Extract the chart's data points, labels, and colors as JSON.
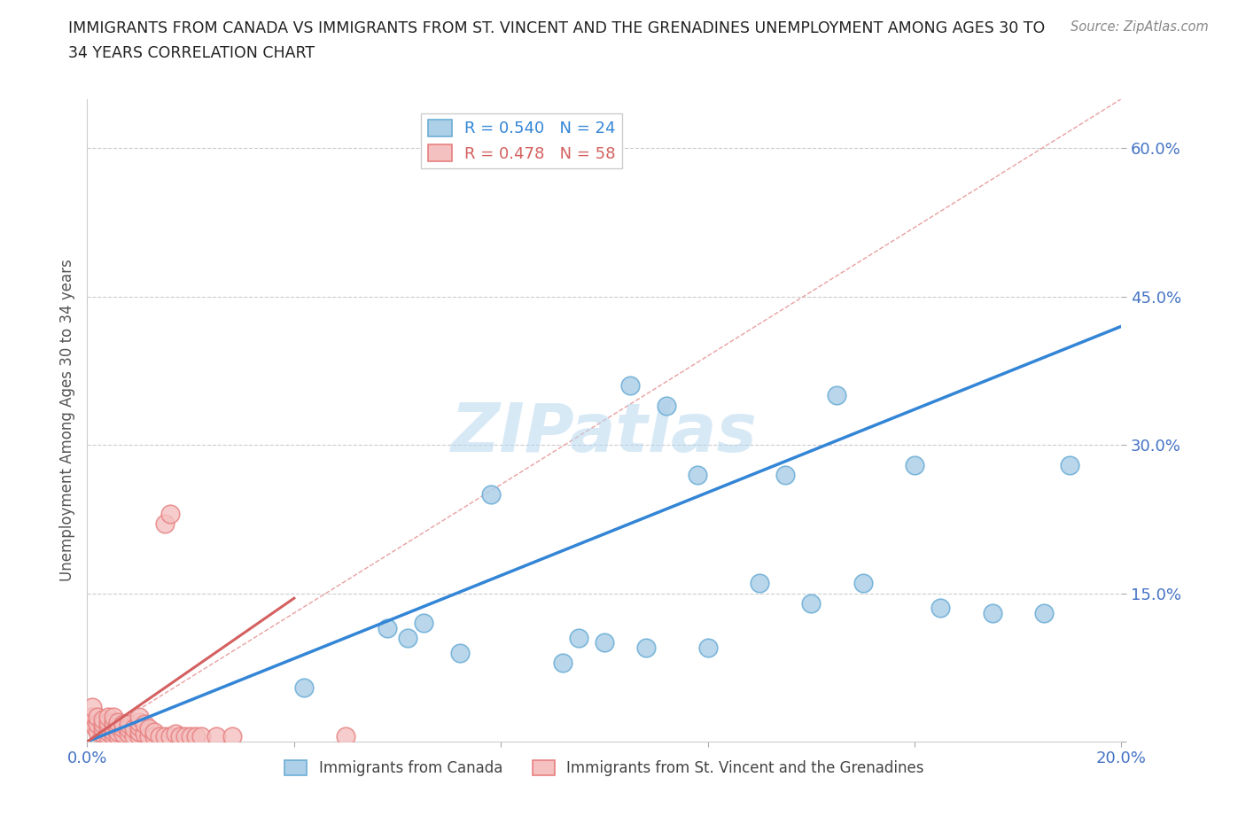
{
  "title_line1": "IMMIGRANTS FROM CANADA VS IMMIGRANTS FROM ST. VINCENT AND THE GRENADINES UNEMPLOYMENT AMONG AGES 30 TO",
  "title_line2": "34 YEARS CORRELATION CHART",
  "source": "Source: ZipAtlas.com",
  "ylabel": "Unemployment Among Ages 30 to 34 years",
  "xlim": [
    0.0,
    0.2
  ],
  "ylim": [
    0.0,
    0.65
  ],
  "yticks": [
    0.0,
    0.15,
    0.3,
    0.45,
    0.6
  ],
  "ytick_labels": [
    "",
    "15.0%",
    "30.0%",
    "45.0%",
    "60.0%"
  ],
  "xticks": [
    0.0,
    0.04,
    0.08,
    0.12,
    0.16,
    0.2
  ],
  "xtick_labels": [
    "0.0%",
    "",
    "",
    "",
    "",
    "20.0%"
  ],
  "canada_R": 0.54,
  "canada_N": 24,
  "stvincent_R": 0.478,
  "stvincent_N": 58,
  "canada_color": "#6baed6",
  "canada_color_fill": "#aecfe8",
  "stvincent_color": "#e8909090",
  "stvincent_color_fill": "#f4c0c0",
  "trendline_color_canada": "#3385d6",
  "trendline_color_stvincent": "#d46060",
  "diagonal_color": "#e8a0a0",
  "watermark": "ZIPatlas",
  "canada_x": [
    0.042,
    0.058,
    0.062,
    0.065,
    0.072,
    0.078,
    0.092,
    0.095,
    0.1,
    0.105,
    0.108,
    0.112,
    0.118,
    0.12,
    0.13,
    0.135,
    0.14,
    0.145,
    0.15,
    0.16,
    0.165,
    0.175,
    0.185,
    0.19
  ],
  "canada_y": [
    0.055,
    0.115,
    0.105,
    0.12,
    0.09,
    0.25,
    0.08,
    0.105,
    0.1,
    0.36,
    0.095,
    0.34,
    0.27,
    0.095,
    0.16,
    0.27,
    0.14,
    0.35,
    0.16,
    0.28,
    0.135,
    0.13,
    0.13,
    0.28
  ],
  "stvincent_x": [
    0.0005,
    0.001,
    0.001,
    0.0015,
    0.002,
    0.002,
    0.002,
    0.003,
    0.003,
    0.003,
    0.003,
    0.004,
    0.004,
    0.004,
    0.004,
    0.004,
    0.005,
    0.005,
    0.005,
    0.005,
    0.005,
    0.006,
    0.006,
    0.006,
    0.006,
    0.007,
    0.007,
    0.007,
    0.008,
    0.008,
    0.008,
    0.009,
    0.009,
    0.01,
    0.01,
    0.01,
    0.01,
    0.01,
    0.011,
    0.011,
    0.012,
    0.012,
    0.013,
    0.013,
    0.014,
    0.015,
    0.015,
    0.016,
    0.016,
    0.017,
    0.018,
    0.019,
    0.02,
    0.021,
    0.022,
    0.025,
    0.028,
    0.05
  ],
  "stvincent_y": [
    0.02,
    0.025,
    0.035,
    0.015,
    0.01,
    0.018,
    0.025,
    0.008,
    0.013,
    0.018,
    0.022,
    0.005,
    0.01,
    0.015,
    0.02,
    0.025,
    0.005,
    0.01,
    0.015,
    0.02,
    0.025,
    0.005,
    0.01,
    0.015,
    0.02,
    0.008,
    0.013,
    0.018,
    0.008,
    0.013,
    0.018,
    0.005,
    0.013,
    0.005,
    0.01,
    0.015,
    0.02,
    0.025,
    0.008,
    0.018,
    0.005,
    0.013,
    0.005,
    0.01,
    0.005,
    0.005,
    0.22,
    0.005,
    0.23,
    0.008,
    0.005,
    0.005,
    0.005,
    0.005,
    0.005,
    0.005,
    0.005,
    0.005
  ],
  "canada_trend_x0": 0.0,
  "canada_trend_y0": 0.0,
  "canada_trend_x1": 0.2,
  "canada_trend_y1": 0.42,
  "stvincent_trend_x0": 0.0,
  "stvincent_trend_y0": 0.0,
  "stvincent_trend_x1": 0.04,
  "stvincent_trend_y1": 0.145
}
